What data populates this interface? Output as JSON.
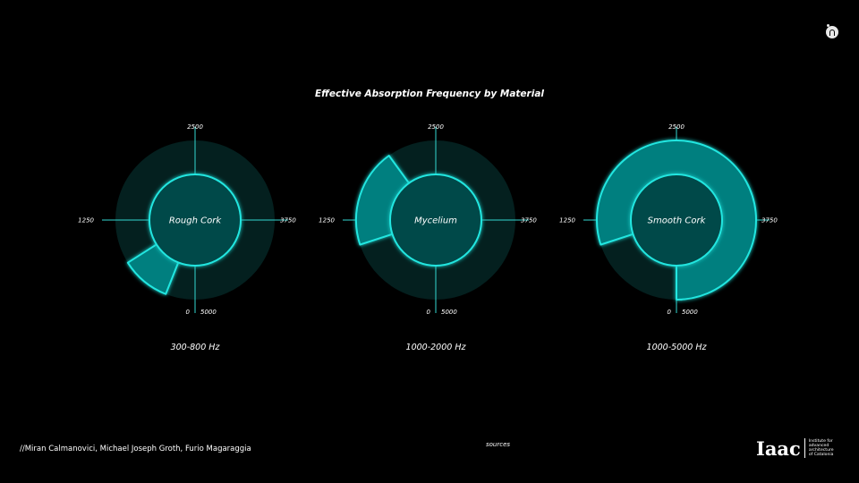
{
  "chart_title": "Effective Absorption Frequency by Material",
  "credits": "//Miran Calmanovici,  Michael Joseph Groth, Furio Magaraggia",
  "sources_label": "sources",
  "logo": {
    "mark": "Iaac",
    "text": [
      "Institute for",
      "advanced",
      "architecture",
      "of Catalonia"
    ]
  },
  "colors": {
    "background": "#000000",
    "outer_ring": "#04201f",
    "inner_circle": "#024a4a",
    "highlight_fill": "#007f7f",
    "glow": "#22e6e0",
    "axis_line": "#33d8d2"
  },
  "chart_data": [
    {
      "type": "radial-range",
      "material": "Rough Cork",
      "range_label": "300-800 Hz",
      "range": [
        300,
        800
      ],
      "axis": {
        "min": 0,
        "max": 5000,
        "tick_labels": {
          "top": "2500",
          "right": "3750",
          "left": "1250",
          "bottom_left": "0",
          "bottom_right": "5000"
        }
      }
    },
    {
      "type": "radial-range",
      "material": "Mycelium",
      "range_label": "1000-2000 Hz",
      "range": [
        1000,
        2000
      ],
      "axis": {
        "min": 0,
        "max": 5000,
        "tick_labels": {
          "top": "2500",
          "right": "3750",
          "left": "1250",
          "bottom_left": "0",
          "bottom_right": "5000"
        }
      }
    },
    {
      "type": "radial-range",
      "material": "Smooth Cork",
      "range_label": "1000-5000 Hz",
      "range": [
        1000,
        5000
      ],
      "axis": {
        "min": 0,
        "max": 5000,
        "tick_labels": {
          "top": "2500",
          "right": "3750",
          "left": "1250",
          "bottom_left": "0",
          "bottom_right": "5000"
        }
      }
    }
  ]
}
